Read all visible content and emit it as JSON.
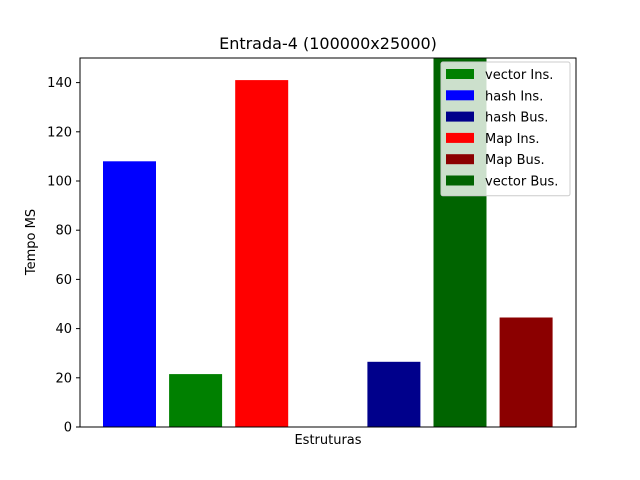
{
  "chart_data": {
    "type": "bar",
    "title": "Entrada-4 (100000x25000)",
    "xlabel": "Estruturas",
    "ylabel": "Tempo MS",
    "ylim": [
      0,
      150
    ],
    "yticks": [
      0,
      20,
      40,
      60,
      80,
      100,
      120,
      140
    ],
    "grid": false,
    "legend_position": "top-right",
    "bars": [
      {
        "series": "hash Ins.",
        "value": 108,
        "color": "#0000ff"
      },
      {
        "series": "vector Ins.",
        "value": 21.5,
        "color": "#008000"
      },
      {
        "series": "Map Ins.",
        "value": 141,
        "color": "#ff0000"
      },
      {
        "series": "vector Bus.",
        "value": 0,
        "color": "#006400"
      },
      {
        "series": "hash Bus.",
        "value": 26.5,
        "color": "#00008b"
      },
      {
        "series": "vector Bus.",
        "value": 150,
        "color": "#006400"
      },
      {
        "series": "Map Bus.",
        "value": 44.5,
        "color": "#8b0000"
      }
    ],
    "legend": [
      {
        "label": "vector Ins.",
        "color": "#008000"
      },
      {
        "label": "hash Ins.",
        "color": "#0000ff"
      },
      {
        "label": "hash Bus.",
        "color": "#00008b"
      },
      {
        "label": "Map Ins.",
        "color": "#ff0000"
      },
      {
        "label": "Map Bus.",
        "color": "#8b0000"
      },
      {
        "label": "vector Bus.",
        "color": "#006400"
      }
    ]
  }
}
